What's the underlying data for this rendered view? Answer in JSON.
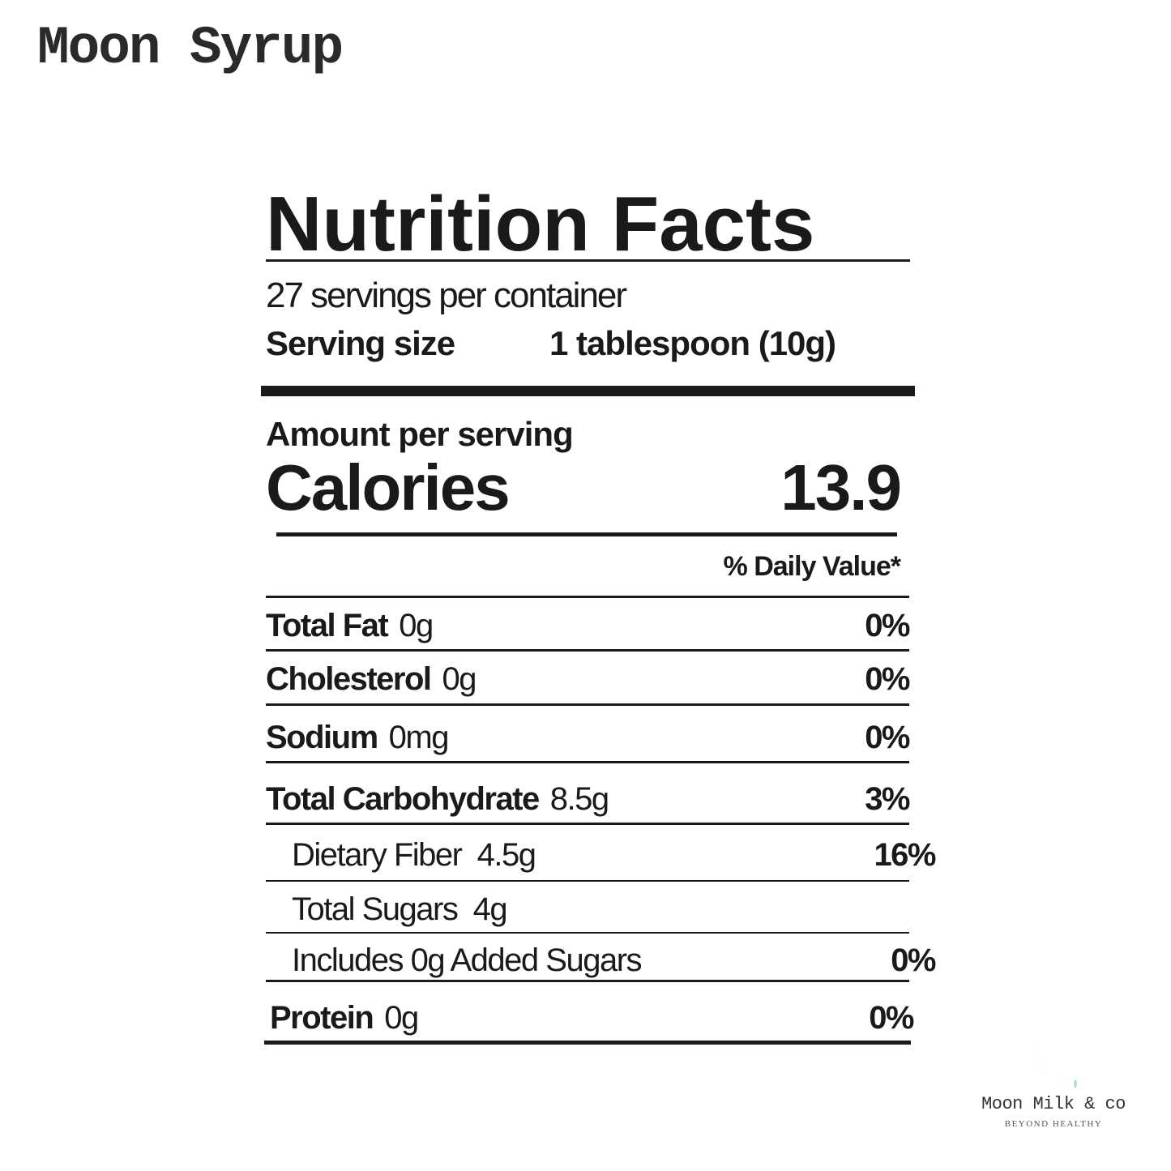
{
  "product": "Moon Syrup",
  "label": {
    "title": "Nutrition Facts",
    "servings": "27 servings per container",
    "serving_size_label": "Serving size",
    "serving_size_value": "1 tablespoon (10g)",
    "amount_per_serving": "Amount per serving",
    "calories_label": "Calories",
    "calories_value": "13.9",
    "dv_header": "% Daily Value*",
    "rows": [
      {
        "name": "Total Fat",
        "amount": "0g",
        "dv": "0%"
      },
      {
        "name": "Cholesterol",
        "amount": "0g",
        "dv": "0%"
      },
      {
        "name": "Sodium",
        "amount": "0mg",
        "dv": "0%"
      },
      {
        "name": "Total Carbohydrate",
        "amount": "8.5g",
        "dv": "3%"
      },
      {
        "name": "",
        "amount": "Dietary Fiber  4.5g",
        "dv": "16%"
      },
      {
        "name": "",
        "amount": "Total Sugars  4g",
        "dv": ""
      },
      {
        "name": "",
        "amount": "Includes 0g Added Sugars",
        "dv": "0%"
      },
      {
        "name": "Protein",
        "amount": "0g",
        "dv": "0%"
      }
    ]
  },
  "brand": {
    "name": "Moon Milk & co",
    "tagline": "BEYOND HEALTHY",
    "color": "#a8ddd8"
  }
}
